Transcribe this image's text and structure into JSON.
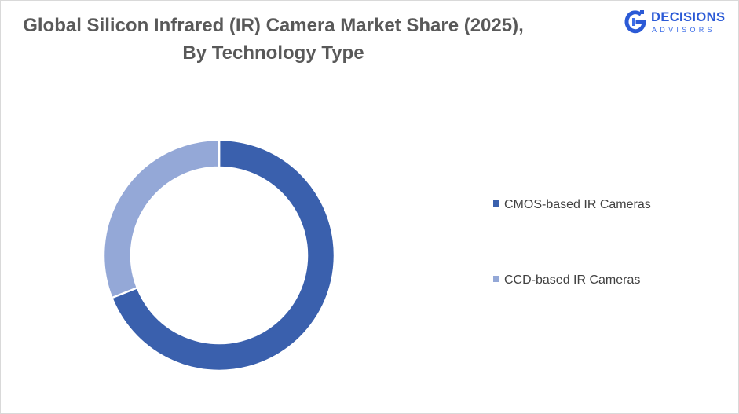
{
  "header": {
    "title_line1": "Global Silicon Infrared (IR) Camera Market Share (2025),",
    "title_line2": "By Technology Type"
  },
  "brand": {
    "name": "DECISIONS",
    "tagline": "ADVISORS",
    "logo_icon": "decisions-advisors-logo-icon"
  },
  "chart_data": {
    "type": "pie",
    "style": "donut",
    "title": "Global Silicon Infrared (IR) Camera Market Share (2025), By Technology Type",
    "categories": [
      "CMOS-based IR Cameras",
      "CCD-based IR Cameras"
    ],
    "values": [
      69,
      31
    ],
    "unit": "%",
    "colors": [
      "#3a60ad",
      "#94a8d7"
    ],
    "legend_position": "right",
    "start_angle": "12 o'clock, clockwise"
  }
}
